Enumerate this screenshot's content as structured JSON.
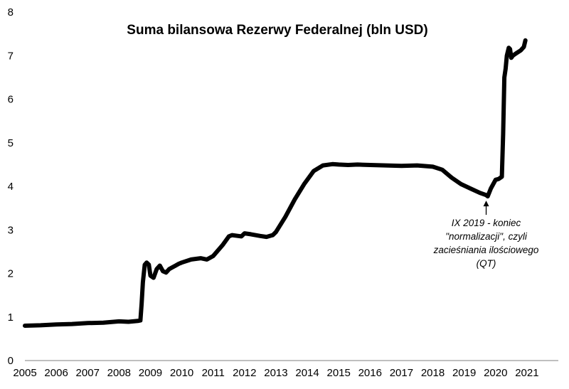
{
  "chart_data": {
    "type": "line",
    "title": "Suma bilansowa Rezerwy Federalnej (bln USD)",
    "xlabel": "",
    "ylabel": "",
    "xlim": [
      2005,
      2022
    ],
    "ylim": [
      0,
      8
    ],
    "x_ticks": [
      "2005",
      "2006",
      "2007",
      "2008",
      "2009",
      "2010",
      "2011",
      "2012",
      "2013",
      "2014",
      "2015",
      "2016",
      "2017",
      "2018",
      "2019",
      "2020",
      "2021"
    ],
    "y_ticks": [
      "0",
      "1",
      "2",
      "3",
      "4",
      "5",
      "6",
      "7",
      "8"
    ],
    "grid": false,
    "legend": "none",
    "line_color": "#000000",
    "series": [
      {
        "x": [
          2005.0,
          2005.5,
          2006.0,
          2006.5,
          2007.0,
          2007.5,
          2008.0,
          2008.3,
          2008.6,
          2008.68,
          2008.72,
          2008.76,
          2008.82,
          2008.88,
          2008.95,
          2009.0,
          2009.1,
          2009.2,
          2009.3,
          2009.4,
          2009.5,
          2009.6,
          2009.7,
          2009.8,
          2009.9,
          2010.0,
          2010.3,
          2010.6,
          2010.8,
          2011.0,
          2011.3,
          2011.5,
          2011.6,
          2011.8,
          2011.9,
          2012.0,
          2012.2,
          2012.5,
          2012.7,
          2012.9,
          2013.0,
          2013.3,
          2013.6,
          2013.9,
          2014.2,
          2014.5,
          2014.8,
          2015.0,
          2015.3,
          2015.6,
          2016.0,
          2016.5,
          2017.0,
          2017.5,
          2018.0,
          2018.3,
          2018.6,
          2018.9,
          2019.2,
          2019.5,
          2019.7,
          2019.75,
          2019.85,
          2020.0,
          2020.1,
          2020.2,
          2020.24,
          2020.28,
          2020.32,
          2020.36,
          2020.42,
          2020.46,
          2020.5,
          2020.55,
          2020.65,
          2020.8,
          2020.9,
          2020.95
        ],
        "y": [
          0.8,
          0.81,
          0.83,
          0.84,
          0.86,
          0.87,
          0.9,
          0.89,
          0.91,
          0.92,
          1.3,
          1.8,
          2.2,
          2.25,
          2.2,
          1.95,
          1.9,
          2.1,
          2.18,
          2.05,
          2.02,
          2.1,
          2.14,
          2.18,
          2.22,
          2.25,
          2.32,
          2.35,
          2.32,
          2.4,
          2.65,
          2.85,
          2.88,
          2.86,
          2.85,
          2.92,
          2.9,
          2.86,
          2.84,
          2.88,
          2.95,
          3.3,
          3.7,
          4.05,
          4.35,
          4.48,
          4.51,
          4.5,
          4.49,
          4.5,
          4.49,
          4.48,
          4.47,
          4.48,
          4.45,
          4.38,
          4.2,
          4.05,
          3.95,
          3.85,
          3.8,
          3.77,
          3.95,
          4.15,
          4.17,
          4.22,
          5.2,
          6.5,
          6.7,
          7.0,
          7.18,
          7.15,
          6.95,
          7.0,
          7.05,
          7.12,
          7.2,
          7.35
        ]
      }
    ],
    "annotation": {
      "lines": [
        "IX 2019 - koniec",
        "\"normalizacji\", czyli",
        "zacieśniania ilościowego",
        "(QT)"
      ],
      "x": 2019.7,
      "y": 3.77
    }
  }
}
